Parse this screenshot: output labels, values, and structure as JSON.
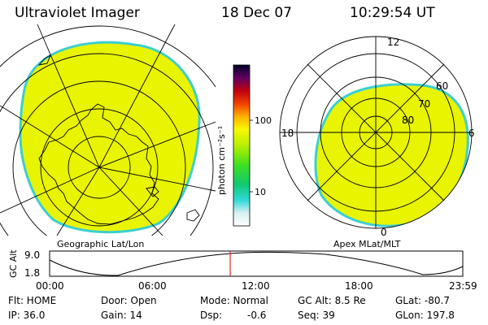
{
  "header": {
    "title": "Ultraviolet Imager",
    "date": "18 Dec 07",
    "time": "10:29:54 UT"
  },
  "geo_panel": {
    "caption": "Geographic Lat/Lon"
  },
  "apex_panel": {
    "caption": "Apex MLat/MLT",
    "mlt_labels": [
      "12",
      "18",
      "6",
      "0"
    ],
    "lat_labels": [
      "60",
      "70",
      "80"
    ]
  },
  "colorbar": {
    "unit_label": "photon cm⁻²s⁻¹",
    "ticks": [
      "100",
      "10"
    ]
  },
  "altitude_plot": {
    "ylabel": "GC Alt",
    "y_ticks": [
      "9.0",
      "1.8"
    ],
    "x_ticks": [
      "00:00",
      "06:00",
      "12:00",
      "18:00",
      "23:59"
    ]
  },
  "status": {
    "flt": "Flt: HOME",
    "ip": "IP: 36.0",
    "door": "Door: Open",
    "gain": "Gain: 14",
    "mode": "Mode: Normal",
    "dsp_label": "Dsp:",
    "dsp_value": "-0.6",
    "gc_alt": "GC Alt: 8.5 Re",
    "seq": "Seq: 39",
    "glat": "GLat: -80.7",
    "glon": "GLon: 197.8"
  },
  "colors": {
    "aurora_fill": "#e8f400",
    "aurora_edge": "#3ccfd0",
    "current_time_marker": "#e00000"
  }
}
